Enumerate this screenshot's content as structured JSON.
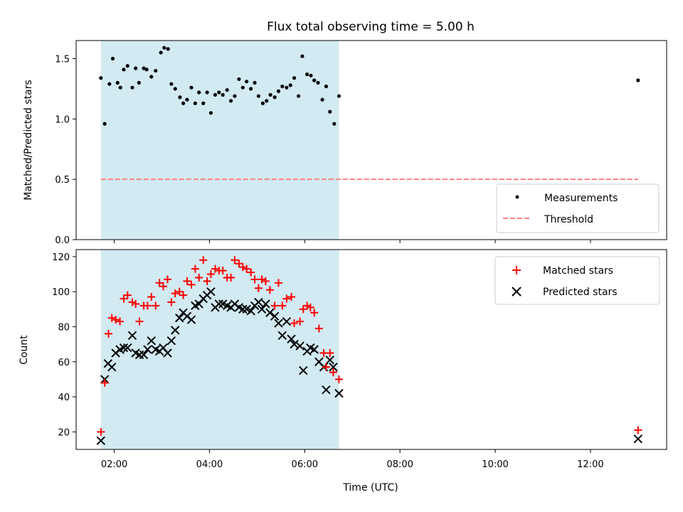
{
  "chart_data": {
    "type": "scatter",
    "title": "Flux total observing time = 5.00 h",
    "xlabel": "Time (UTC)",
    "xlim": [
      1.2,
      13.6
    ],
    "x_ticks": [
      2,
      4,
      6,
      8,
      10,
      12
    ],
    "x_tick_labels": [
      "02:00",
      "04:00",
      "06:00",
      "08:00",
      "10:00",
      "12:00"
    ],
    "x_units": "hours (UTC)",
    "observing_window": [
      1.72,
      6.72
    ],
    "colors": {
      "window": "#add8e6",
      "matched": "#ff0000",
      "predicted": "#000000",
      "threshold": "#ff7f7f",
      "ratio": "#000000"
    },
    "panels": [
      {
        "id": "ratio",
        "ylabel": "Matched/Predicted stars",
        "ylim": [
          0.0,
          1.65
        ],
        "y_ticks": [
          0.0,
          0.5,
          1.0,
          1.5
        ],
        "y_tick_labels": [
          "0.0",
          "0.5",
          "1.0",
          "1.5"
        ],
        "legend_position": "lower right",
        "series": [
          {
            "name": "Measurements",
            "marker": "dot",
            "x": [
              1.72,
              1.8,
              1.9,
              1.97,
              2.07,
              2.13,
              2.2,
              2.28,
              2.38,
              2.45,
              2.52,
              2.62,
              2.68,
              2.78,
              2.87,
              2.98,
              3.05,
              3.13,
              3.2,
              3.28,
              3.38,
              3.45,
              3.53,
              3.62,
              3.7,
              3.78,
              3.87,
              3.95,
              4.03,
              4.12,
              4.2,
              4.28,
              4.37,
              4.45,
              4.53,
              4.62,
              4.7,
              4.78,
              4.87,
              4.95,
              5.03,
              5.12,
              5.2,
              5.28,
              5.37,
              5.45,
              5.53,
              5.62,
              5.7,
              5.78,
              5.87,
              5.95,
              6.05,
              6.13,
              6.2,
              6.28,
              6.37,
              6.45,
              6.53,
              6.62,
              6.72,
              13.0
            ],
            "y": [
              1.34,
              0.96,
              1.29,
              1.5,
              1.3,
              1.26,
              1.41,
              1.44,
              1.26,
              1.42,
              1.3,
              1.42,
              1.41,
              1.35,
              1.4,
              1.55,
              1.59,
              1.58,
              1.29,
              1.25,
              1.18,
              1.13,
              1.16,
              1.26,
              1.13,
              1.22,
              1.13,
              1.22,
              1.05,
              1.2,
              1.22,
              1.2,
              1.24,
              1.15,
              1.19,
              1.33,
              1.26,
              1.31,
              1.25,
              1.3,
              1.19,
              1.13,
              1.15,
              1.2,
              1.18,
              1.23,
              1.27,
              1.26,
              1.28,
              1.34,
              1.19,
              1.52,
              1.37,
              1.36,
              1.32,
              1.3,
              1.16,
              1.27,
              1.06,
              0.96,
              1.19,
              1.32
            ]
          },
          {
            "name": "Threshold",
            "marker": "dashed-line",
            "x": [
              1.72,
              13.0
            ],
            "y": [
              0.5,
              0.5
            ]
          }
        ]
      },
      {
        "id": "counts",
        "ylabel": "Count",
        "ylim": [
          10,
          124
        ],
        "y_ticks": [
          20,
          40,
          60,
          80,
          100,
          120
        ],
        "y_tick_labels": [
          "20",
          "40",
          "60",
          "80",
          "100",
          "120"
        ],
        "legend_position": "upper right",
        "series": [
          {
            "name": "Matched stars",
            "marker": "plus",
            "x": [
              1.72,
              1.8,
              1.88,
              1.95,
              2.03,
              2.12,
              2.2,
              2.28,
              2.38,
              2.45,
              2.53,
              2.62,
              2.7,
              2.78,
              2.87,
              2.95,
              3.03,
              3.12,
              3.2,
              3.28,
              3.37,
              3.45,
              3.53,
              3.62,
              3.7,
              3.78,
              3.87,
              3.95,
              4.03,
              4.12,
              4.2,
              4.28,
              4.37,
              4.45,
              4.53,
              4.62,
              4.7,
              4.78,
              4.87,
              4.95,
              5.03,
              5.1,
              5.18,
              5.27,
              5.37,
              5.45,
              5.53,
              5.62,
              5.72,
              5.78,
              5.9,
              5.97,
              6.05,
              6.12,
              6.2,
              6.3,
              6.4,
              6.45,
              6.53,
              6.6,
              6.72,
              13.0
            ],
            "y": [
              20,
              48,
              76,
              85,
              84,
              83,
              96,
              98,
              94,
              93,
              83,
              92,
              92,
              97,
              92,
              105,
              103,
              107,
              94,
              99,
              100,
              98,
              106,
              104,
              113,
              108,
              118,
              106,
              110,
              113,
              112,
              112,
              108,
              108,
              118,
              116,
              114,
              113,
              111,
              107,
              102,
              107,
              106,
              101,
              92,
              105,
              92,
              96,
              97,
              82,
              83,
              90,
              92,
              91,
              88,
              79,
              65,
              57,
              65,
              54,
              50,
              21
            ]
          },
          {
            "name": "Predicted stars",
            "marker": "x",
            "x": [
              1.72,
              1.8,
              1.87,
              1.95,
              2.03,
              2.12,
              2.2,
              2.28,
              2.38,
              2.45,
              2.53,
              2.62,
              2.7,
              2.78,
              2.87,
              2.95,
              3.03,
              3.12,
              3.2,
              3.28,
              3.37,
              3.45,
              3.53,
              3.62,
              3.7,
              3.78,
              3.87,
              3.95,
              4.03,
              4.12,
              4.2,
              4.28,
              4.37,
              4.45,
              4.53,
              4.62,
              4.7,
              4.78,
              4.87,
              4.95,
              5.03,
              5.1,
              5.18,
              5.27,
              5.37,
              5.45,
              5.53,
              5.62,
              5.72,
              5.78,
              5.9,
              5.97,
              6.05,
              6.12,
              6.2,
              6.3,
              6.4,
              6.45,
              6.53,
              6.6,
              6.72,
              13.0
            ],
            "y": [
              15,
              50,
              59,
              57,
              65,
              67,
              68,
              68,
              75,
              65,
              64,
              64,
              67,
              72,
              67,
              66,
              68,
              65,
              72,
              78,
              85,
              88,
              86,
              84,
              92,
              93,
              96,
              98,
              100,
              91,
              93,
              93,
              92,
              91,
              93,
              91,
              90,
              90,
              89,
              92,
              94,
              90,
              93,
              88,
              86,
              82,
              75,
              83,
              73,
              70,
              69,
              55,
              66,
              68,
              67,
              60,
              57,
              44,
              61,
              57,
              42,
              16
            ]
          }
        ]
      }
    ]
  }
}
